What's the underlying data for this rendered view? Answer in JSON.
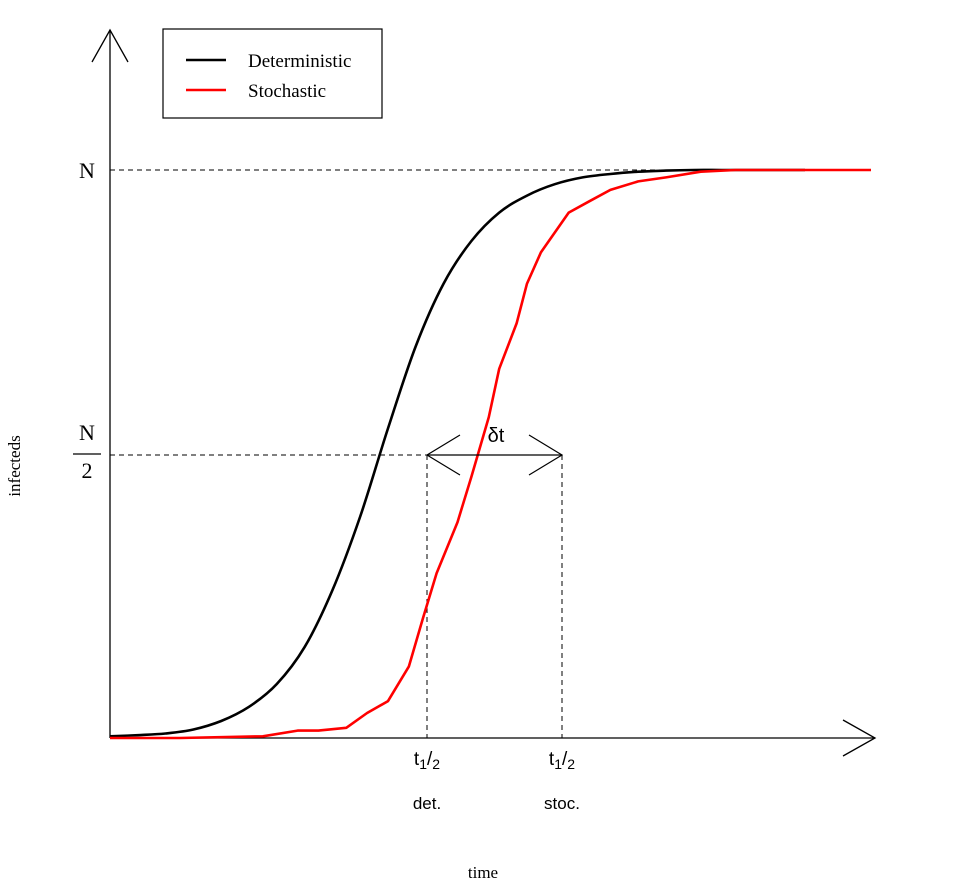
{
  "chart_data": {
    "type": "line",
    "xlabel": "time",
    "ylabel": "infecteds",
    "y_ticks": {
      "top": "N",
      "half_numerator": "N",
      "half_denominator": "2"
    },
    "legend": {
      "placement": "top-left",
      "entries": [
        {
          "label": "Deterministic",
          "color": "#000000"
        },
        {
          "label": "Stochastic",
          "color": "#ff0000"
        }
      ]
    },
    "annotation": {
      "delta_label": "δt"
    },
    "x_markers": [
      {
        "t": "t",
        "sub": "1",
        "slash": "/",
        "denom": "2",
        "label": "det."
      },
      {
        "t": "t",
        "sub": "1",
        "slash": "/",
        "denom": "2",
        "label": "stoc."
      }
    ],
    "grid": false,
    "series": [
      {
        "name": "Deterministic",
        "color": "#000000",
        "x": [
          0.0,
          0.04,
          0.08,
          0.12,
          0.16,
          0.2,
          0.24,
          0.28,
          0.32,
          0.36,
          0.4,
          0.44,
          0.48,
          0.52,
          0.56,
          0.6,
          0.64,
          0.68,
          0.72,
          0.76,
          0.8,
          0.84,
          0.88,
          0.92,
          0.96,
          1.0
        ],
        "y": [
          0.003,
          0.005,
          0.008,
          0.015,
          0.03,
          0.055,
          0.095,
          0.16,
          0.26,
          0.39,
          0.545,
          0.69,
          0.8,
          0.875,
          0.925,
          0.955,
          0.975,
          0.987,
          0.993,
          0.997,
          0.999,
          1.0,
          1.0,
          1.0,
          1.0,
          1.0
        ]
      },
      {
        "name": "Stochastic",
        "color": "#ff0000",
        "x": [
          0.0,
          0.1,
          0.22,
          0.27,
          0.3,
          0.34,
          0.37,
          0.4,
          0.43,
          0.45,
          0.47,
          0.5,
          0.52,
          0.545,
          0.56,
          0.585,
          0.6,
          0.62,
          0.66,
          0.69,
          0.72,
          0.76,
          0.8,
          0.85,
          0.9,
          0.95,
          1.0,
          1.095
        ],
        "y": [
          0.0,
          0.0,
          0.003,
          0.013,
          0.013,
          0.018,
          0.044,
          0.065,
          0.126,
          0.21,
          0.29,
          0.38,
          0.46,
          0.565,
          0.65,
          0.73,
          0.8,
          0.855,
          0.925,
          0.945,
          0.965,
          0.98,
          0.987,
          0.997,
          1.0,
          1.0,
          1.0,
          1.0
        ]
      }
    ]
  }
}
